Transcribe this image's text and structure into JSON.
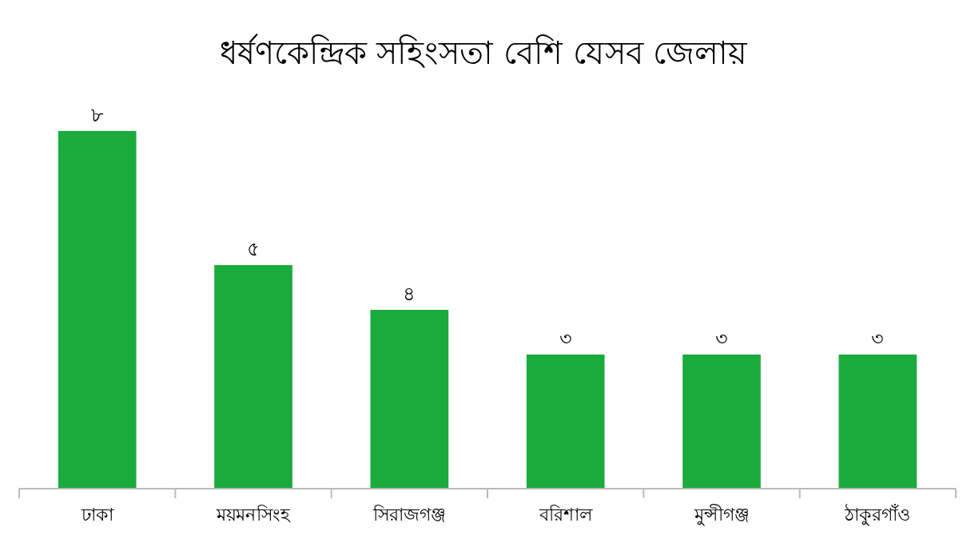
{
  "chart_data": {
    "type": "bar",
    "title": "ধর্ষণকেন্দ্রিক সহিংসতা বেশি যেসব জেলায়",
    "categories": [
      "ঢাকা",
      "ময়মনসিংহ",
      "সিরাজগঞ্জ",
      "বরিশাল",
      "মুন্সীগঞ্জ",
      "ঠাকুরগাঁও"
    ],
    "values": [
      8,
      5,
      4,
      3,
      3,
      3
    ],
    "value_labels": [
      "৮",
      "৫",
      "৪",
      "৩",
      "৩",
      "৩"
    ],
    "color": "#1aab3c"
  }
}
